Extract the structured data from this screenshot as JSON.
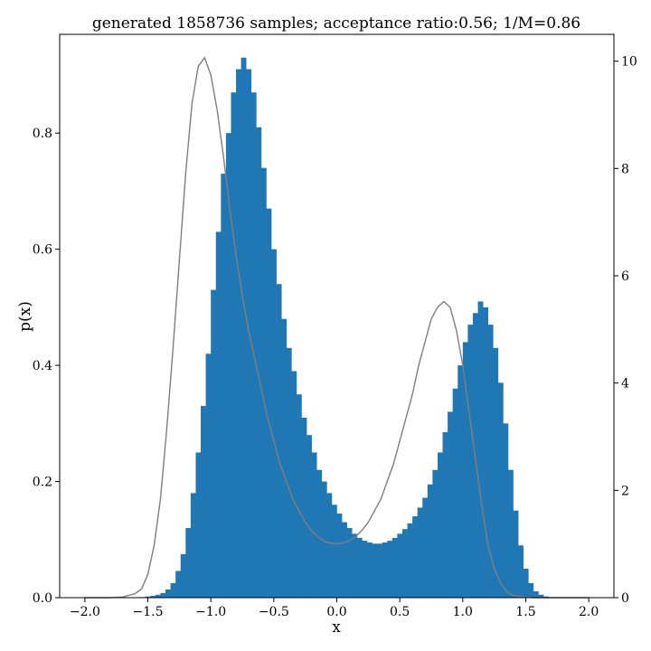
{
  "chart_data": {
    "type": "bar",
    "title": "generated 1858736 samples; acceptance ratio:0.56; 1/M=0.86",
    "xlabel": "x",
    "ylabel": "p(x)",
    "xlim": [
      -2.2,
      2.2
    ],
    "ylim": [
      0,
      0.97
    ],
    "ylim_right": [
      0,
      10.5
    ],
    "x_ticks": [
      -2.0,
      -1.5,
      -1.0,
      -0.5,
      0.0,
      0.5,
      1.0,
      1.5,
      2.0
    ],
    "x_tick_labels": [
      "−2.0",
      "−1.5",
      "−1.0",
      "−0.5",
      "0.0",
      "0.5",
      "1.0",
      "1.5",
      "2.0"
    ],
    "y_ticks": [
      0.0,
      0.2,
      0.4,
      0.6,
      0.8
    ],
    "y_tick_labels": [
      "0.0",
      "0.2",
      "0.4",
      "0.6",
      "0.8"
    ],
    "y_right_ticks": [
      0,
      2,
      4,
      6,
      8,
      10
    ],
    "y_right_tick_labels": [
      "0",
      "2",
      "4",
      "6",
      "8",
      "10"
    ],
    "grid": false,
    "bar_color": "#1f77b4",
    "curve_color": "#7f7f7f",
    "series": [
      {
        "kind": "histogram",
        "bin_start": -2.0,
        "bin_width": 0.04,
        "values": [
          0.0,
          0.0,
          0.0,
          0.0,
          0.0,
          0.0,
          0.0,
          0.0,
          0.0,
          0.0,
          0.0,
          0.001,
          0.002,
          0.003,
          0.005,
          0.008,
          0.014,
          0.025,
          0.046,
          0.075,
          0.12,
          0.18,
          0.25,
          0.33,
          0.42,
          0.53,
          0.63,
          0.73,
          0.8,
          0.87,
          0.91,
          0.93,
          0.91,
          0.87,
          0.81,
          0.74,
          0.67,
          0.6,
          0.54,
          0.48,
          0.43,
          0.39,
          0.35,
          0.31,
          0.28,
          0.25,
          0.22,
          0.2,
          0.18,
          0.16,
          0.145,
          0.13,
          0.12,
          0.11,
          0.103,
          0.098,
          0.095,
          0.093,
          0.093,
          0.095,
          0.098,
          0.103,
          0.11,
          0.118,
          0.128,
          0.14,
          0.155,
          0.172,
          0.195,
          0.22,
          0.25,
          0.285,
          0.32,
          0.36,
          0.4,
          0.44,
          0.47,
          0.49,
          0.51,
          0.5,
          0.47,
          0.43,
          0.37,
          0.3,
          0.22,
          0.15,
          0.09,
          0.05,
          0.025,
          0.011,
          0.005,
          0.002,
          0.001,
          0.0,
          0.0,
          0.0,
          0.0,
          0.0,
          0.0,
          0.0
        ]
      },
      {
        "kind": "line",
        "x": [
          -2.0,
          -1.9,
          -1.8,
          -1.7,
          -1.6,
          -1.55,
          -1.5,
          -1.45,
          -1.4,
          -1.35,
          -1.3,
          -1.25,
          -1.2,
          -1.15,
          -1.1,
          -1.05,
          -1.0,
          -0.95,
          -0.9,
          -0.85,
          -0.8,
          -0.75,
          -0.7,
          -0.65,
          -0.6,
          -0.55,
          -0.5,
          -0.45,
          -0.4,
          -0.35,
          -0.3,
          -0.25,
          -0.2,
          -0.15,
          -0.1,
          -0.05,
          0.0,
          0.05,
          0.1,
          0.15,
          0.2,
          0.25,
          0.3,
          0.35,
          0.4,
          0.45,
          0.5,
          0.55,
          0.6,
          0.65,
          0.7,
          0.75,
          0.8,
          0.85,
          0.9,
          0.95,
          1.0,
          1.05,
          1.1,
          1.15,
          1.2,
          1.25,
          1.3,
          1.35,
          1.4,
          1.45,
          1.5,
          1.55,
          1.6,
          1.7,
          1.8,
          1.9,
          2.0
        ],
        "y": [
          0.0,
          0.0,
          0.0,
          0.001,
          0.007,
          0.015,
          0.04,
          0.09,
          0.17,
          0.29,
          0.43,
          0.58,
          0.73,
          0.85,
          0.915,
          0.93,
          0.9,
          0.84,
          0.76,
          0.67,
          0.59,
          0.52,
          0.46,
          0.41,
          0.36,
          0.31,
          0.27,
          0.23,
          0.2,
          0.17,
          0.15,
          0.13,
          0.115,
          0.105,
          0.097,
          0.094,
          0.093,
          0.094,
          0.098,
          0.105,
          0.116,
          0.13,
          0.15,
          0.17,
          0.2,
          0.23,
          0.27,
          0.31,
          0.35,
          0.4,
          0.44,
          0.48,
          0.5,
          0.51,
          0.5,
          0.46,
          0.4,
          0.32,
          0.24,
          0.16,
          0.09,
          0.05,
          0.025,
          0.01,
          0.004,
          0.002,
          0.001,
          0.0,
          0.0,
          0.0,
          0.0,
          0.0,
          0.0
        ]
      }
    ]
  }
}
